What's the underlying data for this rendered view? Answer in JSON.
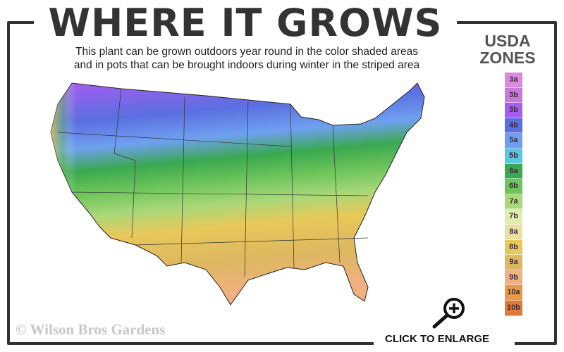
{
  "title": "WHERE IT GROWS",
  "subtitle_line1": "This plant can be grown outdoors year round in the color shaded areas",
  "subtitle_line2": "and in pots that can be brought indoors during winter in the striped area",
  "legend": {
    "title_line1": "USDA",
    "title_line2": "ZONES",
    "zones": [
      {
        "label": "3a",
        "color": "#d98ae0"
      },
      {
        "label": "3b",
        "color": "#c77ad9"
      },
      {
        "label": "3b",
        "color": "#a65df0"
      },
      {
        "label": "4b",
        "color": "#5a6fe0"
      },
      {
        "label": "5a",
        "color": "#6fa0f0"
      },
      {
        "label": "5b",
        "color": "#5cc8e0"
      },
      {
        "label": "6a",
        "color": "#3aa850"
      },
      {
        "label": "6b",
        "color": "#6cc45a"
      },
      {
        "label": "7a",
        "color": "#a8d878"
      },
      {
        "label": "7b",
        "color": "#e0ecb0"
      },
      {
        "label": "8a",
        "color": "#ece0a0"
      },
      {
        "label": "8b",
        "color": "#e8c85a"
      },
      {
        "label": "9a",
        "color": "#dcb860"
      },
      {
        "label": "9b",
        "color": "#f0b080"
      },
      {
        "label": "10a",
        "color": "#e89a48"
      },
      {
        "label": "10b",
        "color": "#e07a38"
      }
    ]
  },
  "watermark": "© Wilson Bros Gardens",
  "enlarge_label": "CLICK TO ENLARGE",
  "icons": {
    "enlarge": "magnifier-plus-icon"
  }
}
